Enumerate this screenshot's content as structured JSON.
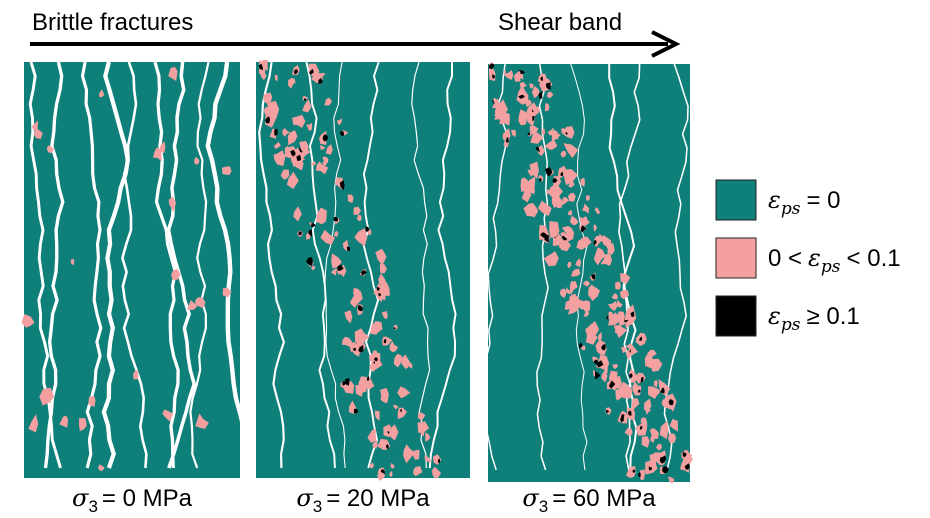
{
  "arrow": {
    "left_label": "Brittle fractures",
    "right_label": "Shear band"
  },
  "panels": [
    {
      "symbol": "σ",
      "subscript": "3",
      "text": "= 0 MPa"
    },
    {
      "symbol": "σ",
      "subscript": "3",
      "text": "= 20 MPa"
    },
    {
      "symbol": "σ",
      "subscript": "3",
      "text": "= 60 MPa"
    }
  ],
  "legend": [
    {
      "symbol": "ε",
      "subscript": "ps",
      "suffix": "= 0"
    },
    {
      "prefix": "0 <",
      "symbol": "ε",
      "subscript": "ps",
      "suffix": "< 0.1"
    },
    {
      "symbol": "ε",
      "subscript": "ps",
      "suffix": "≥ 0.1"
    }
  ]
}
